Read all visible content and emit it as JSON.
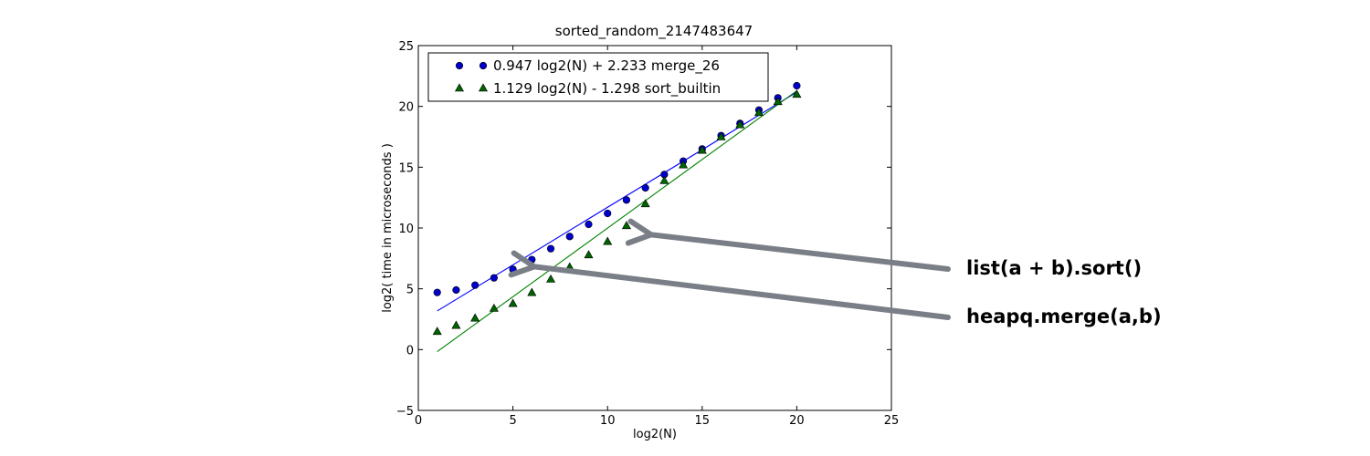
{
  "chart_data": {
    "type": "scatter",
    "title": "sorted_random_2147483647",
    "xlabel": "log2(N)",
    "ylabel": "log2( time in microseconds )",
    "xlim": [
      0,
      25
    ],
    "ylim": [
      -5,
      25
    ],
    "xticks": [
      0,
      5,
      10,
      15,
      20,
      25
    ],
    "yticks": [
      -5,
      0,
      5,
      10,
      15,
      20,
      25
    ],
    "grid": false,
    "legend": "top-left",
    "series": [
      {
        "name": "0.947 log2(N) + 2.233 merge_26",
        "marker": "circle",
        "color": "#0000cc",
        "fit": {
          "slope": 0.947,
          "intercept": 2.233
        },
        "x": [
          1,
          2,
          3,
          4,
          5,
          6,
          7,
          8,
          9,
          10,
          11,
          12,
          13,
          14,
          15,
          16,
          17,
          18,
          19,
          20
        ],
        "y": [
          4.7,
          4.9,
          5.3,
          5.9,
          6.6,
          7.4,
          8.3,
          9.3,
          10.3,
          11.2,
          12.3,
          13.3,
          14.4,
          15.5,
          16.5,
          17.6,
          18.6,
          19.7,
          20.7,
          21.7
        ]
      },
      {
        "name": "1.129 log2(N) - 1.298 sort_builtin",
        "marker": "triangle",
        "color": "#006400",
        "fit": {
          "slope": 1.129,
          "intercept": -1.298
        },
        "x": [
          1,
          2,
          3,
          4,
          5,
          6,
          7,
          8,
          9,
          10,
          11,
          12,
          13,
          14,
          15,
          16,
          17,
          18,
          19,
          20
        ],
        "y": [
          1.5,
          2.0,
          2.6,
          3.4,
          3.8,
          4.7,
          5.8,
          6.8,
          7.8,
          8.9,
          10.2,
          12.0,
          13.9,
          15.2,
          16.4,
          17.5,
          18.5,
          19.5,
          20.4,
          21.0
        ]
      }
    ],
    "annotations": [
      {
        "text": "list(a + b).sort()"
      },
      {
        "text": "heapq.merge(a,b)"
      }
    ]
  }
}
